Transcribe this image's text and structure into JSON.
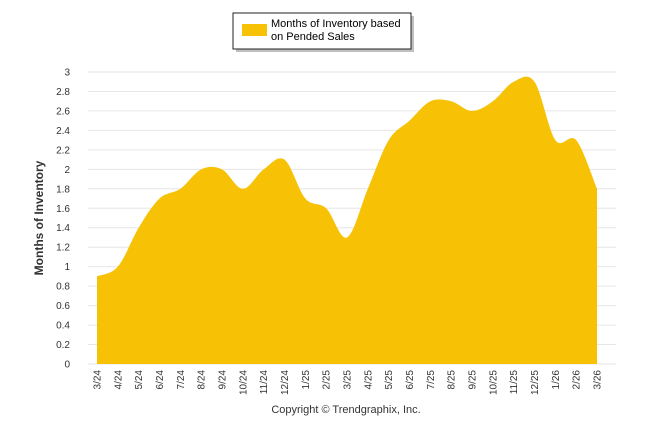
{
  "chart_data": {
    "type": "area",
    "title": "",
    "xlabel": "",
    "ylabel": "Months of Inventory",
    "ylim": [
      0,
      3
    ],
    "yticks": [
      "0",
      "0.2",
      "0.4",
      "0.6",
      "0.8",
      "1",
      "1.2",
      "1.4",
      "1.6",
      "1.8",
      "2",
      "2.2",
      "2.4",
      "2.6",
      "2.8",
      "3"
    ],
    "grid": true,
    "legend_position": "top-center",
    "categories": [
      "3/24",
      "4/24",
      "5/24",
      "6/24",
      "7/24",
      "8/24",
      "9/24",
      "10/24",
      "11/24",
      "12/24",
      "1/25",
      "2/25",
      "3/25",
      "4/25",
      "5/25",
      "6/25",
      "7/25",
      "8/25",
      "9/25",
      "10/25",
      "11/25",
      "12/25",
      "1/26",
      "2/26",
      "3/26"
    ],
    "series": [
      {
        "name": "Months of Inventory based on Pended Sales",
        "color": "#f7c205",
        "values": [
          0.9,
          1.0,
          1.4,
          1.7,
          1.8,
          2.0,
          2.0,
          1.8,
          2.0,
          2.1,
          1.7,
          1.6,
          1.3,
          1.8,
          2.3,
          2.5,
          2.7,
          2.7,
          2.6,
          2.7,
          2.9,
          2.9,
          2.3,
          2.3,
          1.8
        ]
      }
    ]
  },
  "legend": {
    "line1": "Months of Inventory based",
    "line2": "on Pended Sales"
  },
  "footer": {
    "copyright": "Copyright © Trendgraphix, Inc."
  }
}
